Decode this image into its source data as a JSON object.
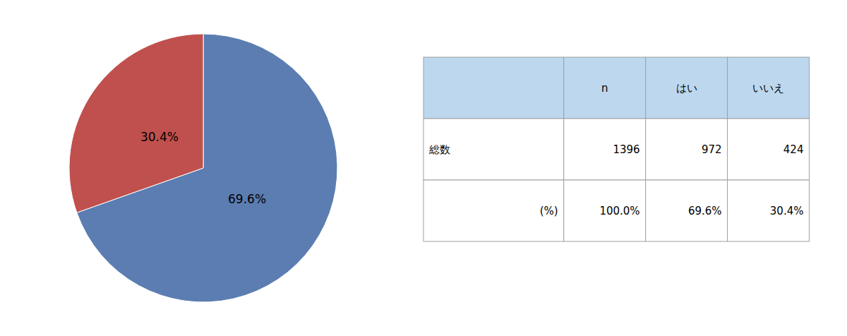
{
  "chart_data": [
    {
      "type": "pie",
      "values": [
        69.6,
        30.4
      ],
      "value_labels": [
        "69.6%",
        "30.4%"
      ],
      "colors": [
        "#5b7db1",
        "#c0504d"
      ],
      "data_labels": true
    },
    {
      "type": "table",
      "columns": [
        null,
        "n",
        "はい",
        "いいえ"
      ],
      "rows": [
        [
          "総数",
          "1396",
          "972",
          "424"
        ],
        [
          "(%)",
          "100.0%",
          "69.6%",
          "30.4%"
        ]
      ]
    }
  ]
}
